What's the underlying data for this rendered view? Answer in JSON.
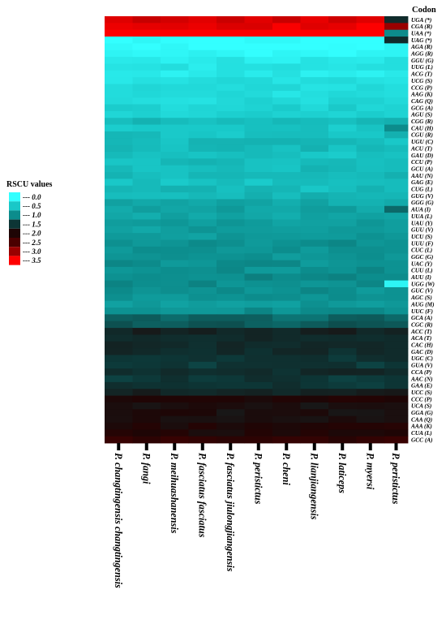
{
  "chart_data": {
    "type": "heatmap",
    "column_header": "Codon",
    "legend": {
      "title": "RSCU values",
      "ticks": [
        "0.0",
        "0.5",
        "1.0",
        "1.5",
        "2.0",
        "2.5",
        "3.0",
        "3.5"
      ],
      "colors": [
        "#33ffff",
        "#19c8c8",
        "#0c8c8c",
        "#0d3535",
        "#1e0505",
        "#4a0000",
        "#990000",
        "#ff0000"
      ]
    },
    "columns": [
      "P. changtingensis changtingensis",
      "P. fangi",
      "P. meihuashanensis",
      "P. fasciatus fasciatus",
      "P. fasciatus jiulongjiangensis",
      "P. peristictus",
      "P. cheni",
      "P. lianjiangensis",
      "P. laticeps",
      "P. myersi",
      "P. peristictus"
    ],
    "rows": [
      "UGA (*)",
      "CGA (R)",
      "UAA (*)",
      "UAG (*)",
      "AGA (R)",
      "AGG (R)",
      "GGU (G)",
      "UUG (L)",
      "ACG (T)",
      "UCG (S)",
      "CCG (P)",
      "AAG (K)",
      "CAG (Q)",
      "GCG (A)",
      "AGU (S)",
      "CGG (R)",
      "CAU (H)",
      "CGU (R)",
      "UGU (C)",
      "ACU (T)",
      "GAU (D)",
      "CCU (P)",
      "GCU (A)",
      "AAU (N)",
      "GAG (E)",
      "CUG (L)",
      "GUG (V)",
      "GGG (G)",
      "AUA (I)",
      "UUA (L)",
      "UAU (Y)",
      "GUU (V)",
      "UCU (S)",
      "UUU (F)",
      "CUC (L)",
      "GGC (G)",
      "UAC (Y)",
      "CUU (L)",
      "AUU (I)",
      "UGG (W)",
      "GUC (V)",
      "AGC (S)",
      "AUG (M)",
      "UUC (F)",
      "GCA (A)",
      "CGC (R)",
      "ACC (T)",
      "ACA (T)",
      "CAC (H)",
      "GAC (D)",
      "UGC (C)",
      "GUA (V)",
      "CCA (P)",
      "AAC (N)",
      "GAA (E)",
      "UCC (S)",
      "CCC (P)",
      "UCA (S)",
      "GGA (G)",
      "CAA (Q)",
      "AAA (K)",
      "CUA (L)",
      "GCC (A)"
    ],
    "base_values": [
      3.3,
      3.4,
      3.7,
      0.0,
      0.0,
      0.05,
      0.2,
      0.25,
      0.2,
      0.3,
      0.3,
      0.3,
      0.35,
      0.4,
      0.4,
      0.6,
      0.5,
      0.55,
      0.6,
      0.6,
      0.55,
      0.6,
      0.6,
      0.6,
      0.55,
      0.6,
      0.65,
      0.75,
      0.8,
      0.8,
      0.85,
      0.85,
      0.9,
      0.95,
      0.95,
      0.9,
      0.95,
      0.95,
      1.0,
      1.0,
      0.95,
      0.95,
      0.9,
      0.95,
      1.2,
      1.3,
      1.7,
      1.6,
      1.6,
      1.6,
      1.5,
      1.5,
      1.6,
      1.5,
      1.5,
      1.7,
      2.0,
      1.9,
      1.9,
      1.9,
      2.0,
      2.0,
      2.2
    ],
    "last_column_values": [
      1.6,
      3.0,
      1.0,
      1.6,
      0.1,
      0.1,
      0.3,
      0.3,
      0.2,
      0.25,
      0.3,
      0.3,
      0.35,
      0.4,
      0.4,
      0.7,
      1.0,
      0.7,
      0.5,
      0.6,
      0.55,
      0.6,
      0.6,
      0.7,
      0.6,
      0.6,
      0.65,
      0.75,
      1.2,
      0.8,
      0.85,
      0.85,
      0.9,
      0.95,
      0.95,
      0.9,
      0.95,
      0.95,
      1.0,
      0.1,
      0.95,
      0.95,
      0.9,
      0.95,
      1.2,
      1.3,
      1.7,
      1.6,
      1.6,
      1.6,
      1.6,
      1.5,
      1.6,
      1.5,
      1.5,
      1.8,
      2.0,
      1.9,
      1.9,
      1.9,
      2.1,
      2.0,
      2.3
    ]
  }
}
